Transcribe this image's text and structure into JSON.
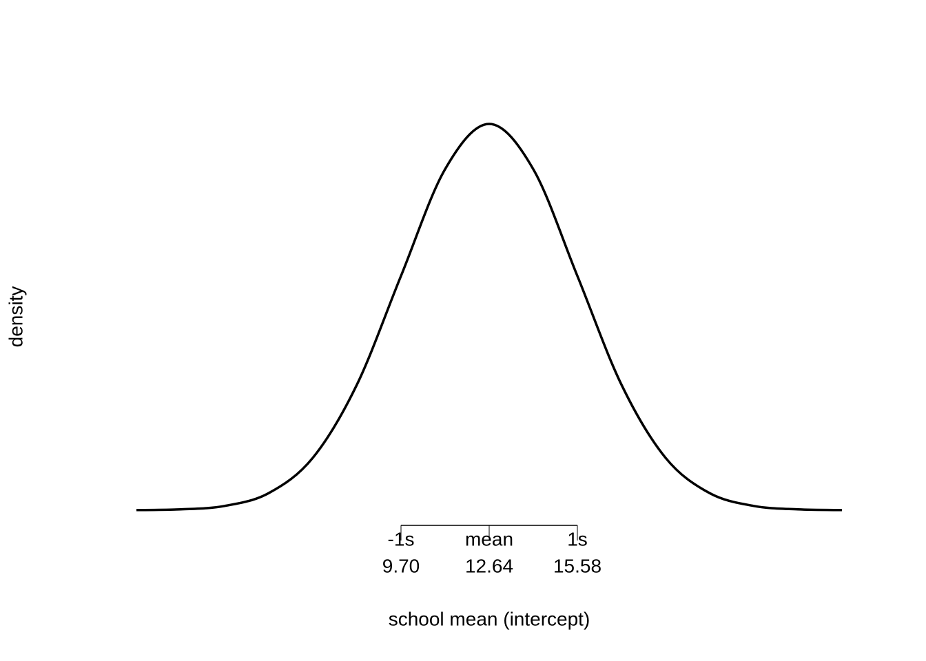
{
  "chart_data": {
    "type": "density",
    "x_label": "school mean (intercept)",
    "y_label": "density",
    "x": [
      0.88,
      2.35,
      3.82,
      5.29,
      6.76,
      8.23,
      9.7,
      11.17,
      12.64,
      14.11,
      15.58,
      17.05,
      18.52,
      19.99,
      21.46,
      22.93,
      24.4
    ],
    "values": [
      5e-05,
      0.0003,
      0.0015,
      0.006,
      0.0184,
      0.0441,
      0.0823,
      0.1198,
      0.1357,
      0.1198,
      0.0823,
      0.0441,
      0.0184,
      0.006,
      0.0015,
      0.0003,
      5e-05
    ],
    "color": "#000000",
    "xlim": [
      0.88,
      24.4
    ],
    "ylim": [
      0,
      0.1357
    ],
    "xticks": [
      {
        "value": 9.7,
        "label": "-1s"
      },
      {
        "value": 12.64,
        "label": "mean"
      },
      {
        "value": 15.58,
        "label": "1s"
      }
    ],
    "xtick_numbers": [
      {
        "value": 9.7,
        "label": "9.70"
      },
      {
        "value": 12.64,
        "label": "12.64"
      },
      {
        "value": 15.58,
        "label": "15.58"
      }
    ]
  }
}
